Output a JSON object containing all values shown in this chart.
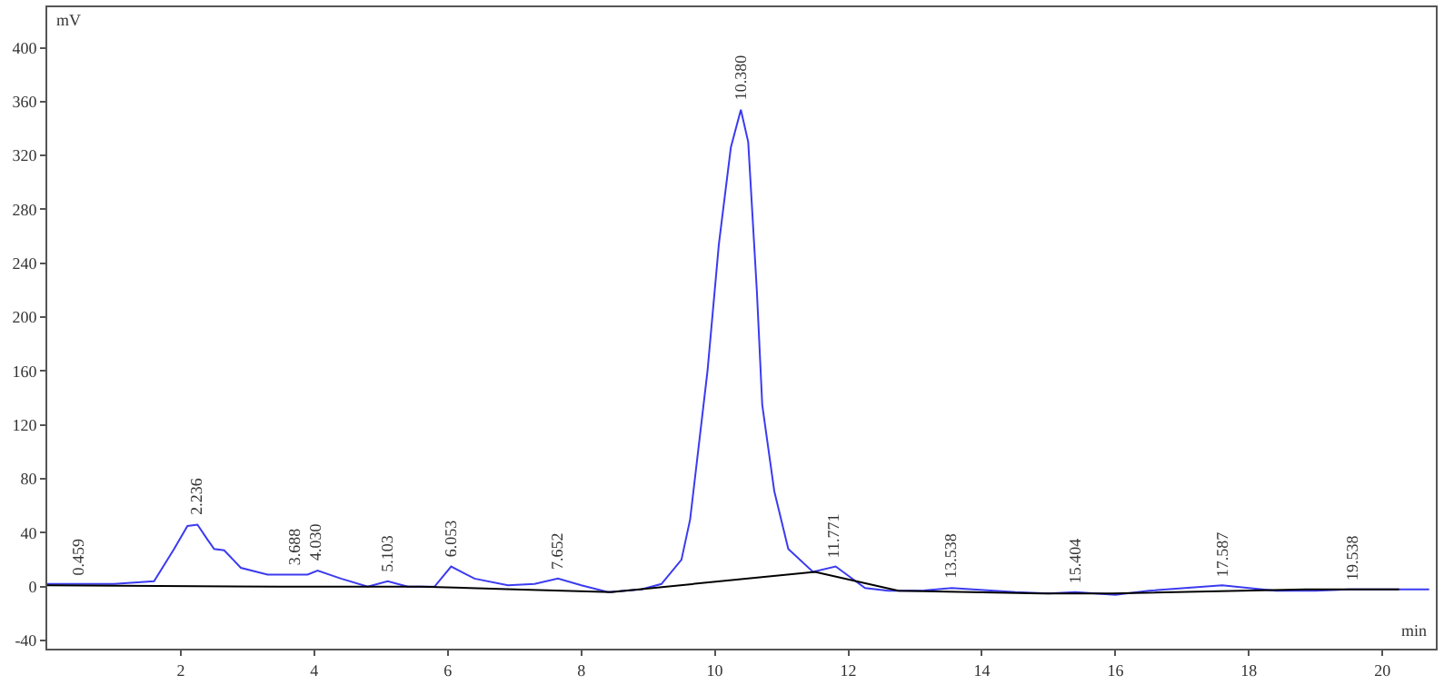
{
  "chart_data": {
    "type": "line",
    "xlabel": "min",
    "ylabel": "mV",
    "xlim": [
      0,
      20.8
    ],
    "ylim": [
      -46,
      430
    ],
    "xticks": [
      2,
      4,
      6,
      8,
      10,
      12,
      14,
      16,
      18,
      20
    ],
    "yticks": [
      -40,
      0,
      40,
      80,
      120,
      160,
      200,
      240,
      280,
      320,
      360,
      400
    ],
    "marker": "none",
    "line_style": "solid",
    "series": [
      {
        "color": "#3b3bf0",
        "x": [
          0,
          1.0,
          1.6,
          1.9,
          2.1,
          2.25,
          2.4,
          2.5,
          2.65,
          2.9,
          3.3,
          3.9,
          4.05,
          4.4,
          4.8,
          5.1,
          5.4,
          5.8,
          6.05,
          6.4,
          6.9,
          7.3,
          7.65,
          8.0,
          8.4,
          8.9,
          9.2,
          9.5,
          9.63,
          9.89,
          10.06,
          10.24,
          10.39,
          10.5,
          10.63,
          10.71,
          10.89,
          11.1,
          11.47,
          11.81,
          12.25,
          12.6,
          13.1,
          13.55,
          14.5,
          15.0,
          15.4,
          16.0,
          16.5,
          17.6,
          18.4,
          19.0,
          19.5,
          20.0,
          20.7
        ],
        "values": [
          2,
          2,
          4,
          28,
          45,
          46,
          35,
          28,
          27,
          14,
          9,
          9,
          12,
          6,
          0,
          4,
          0,
          0,
          15,
          6,
          1,
          2,
          6,
          1,
          -4,
          -2,
          2,
          20,
          50,
          160,
          254,
          326,
          354,
          330,
          219,
          135,
          71,
          28,
          11,
          15,
          -1,
          -3,
          -3,
          -1,
          -4,
          -5,
          -4,
          -6,
          -3,
          1,
          -3,
          -3,
          -2,
          -2,
          -2
        ]
      },
      {
        "color": "#000000",
        "x": [
          0,
          3.5,
          4.8,
          5.6,
          7.0,
          8.45,
          11.5,
          12.75,
          14.9,
          15.95,
          18.85,
          20.25
        ],
        "values": [
          1,
          0,
          0,
          0,
          -2,
          -4,
          11,
          -3,
          -5,
          -5,
          -2,
          -2
        ]
      }
    ],
    "annotations": [
      {
        "text": "0.459",
        "x": 0.459,
        "y": 2
      },
      {
        "text": "2.236",
        "x": 2.236,
        "y": 46
      },
      {
        "text": "3.688",
        "x": 3.688,
        "y": 9
      },
      {
        "text": "4.030",
        "x": 4.03,
        "y": 12
      },
      {
        "text": "5.103",
        "x": 5.103,
        "y": 4
      },
      {
        "text": "6.053",
        "x": 6.053,
        "y": 15
      },
      {
        "text": "7.652",
        "x": 7.652,
        "y": 6
      },
      {
        "text": "10.380",
        "x": 10.38,
        "y": 354
      },
      {
        "text": "11.771",
        "x": 11.771,
        "y": 15
      },
      {
        "text": "13.538",
        "x": 13.538,
        "y": -1
      },
      {
        "text": "15.404",
        "x": 15.404,
        "y": -4
      },
      {
        "text": "17.587",
        "x": 17.587,
        "y": 1
      },
      {
        "text": "19.538",
        "x": 19.538,
        "y": -2
      }
    ]
  }
}
